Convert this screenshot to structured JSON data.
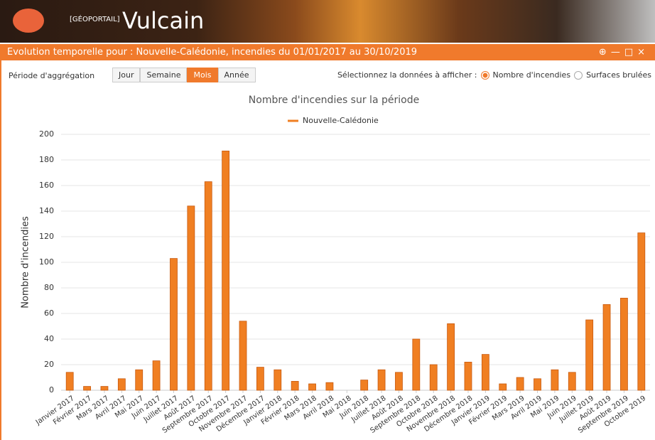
{
  "header": {
    "brand": "[GÉOPORTAIL]",
    "app": "Vulcain"
  },
  "window": {
    "title": "Evolution temporelle pour : Nouvelle-Calédonie, incendies du 01/01/2017 au 30/10/2019"
  },
  "controls": {
    "period_label": "Période d'aggrégation",
    "periods": [
      "Jour",
      "Semaine",
      "Mois",
      "Année"
    ],
    "selected_period": 2,
    "data_label": "Sélectionnez la données à afficher :",
    "options": [
      "Nombre d'incendies",
      "Surfaces brulées"
    ],
    "selected_option": 0
  },
  "chart_data": {
    "type": "bar",
    "title": "Nombre d'incendies sur la période",
    "y_label": "Nombre d'incendies",
    "categories": [
      "Janvier 2017",
      "Février 2017",
      "Mars 2017",
      "Avril 2017",
      "Mai 2017",
      "Juin 2017",
      "Juillet 2017",
      "Août 2017",
      "Septembre 2017",
      "Octobre 2017",
      "Novembre 2017",
      "Décembre 2017",
      "Janvier 2018",
      "Février 2018",
      "Mars 2018",
      "Avril 2018",
      "Mai 2018",
      "Juin 2018",
      "Juillet 2018",
      "Août 2018",
      "Septembre 2018",
      "Octobre 2018",
      "Novembre 2018",
      "Décembre 2018",
      "Janvier 2019",
      "Février 2019",
      "Mars 2019",
      "Avril 2019",
      "Mai 2019",
      "Juin 2019",
      "Juillet 2019",
      "Août 2019",
      "Septembre 2019",
      "Octobre 2019"
    ],
    "series": [
      {
        "name": "Nouvelle-Calédonie",
        "color": "#f07f22",
        "values": [
          14,
          3,
          3,
          9,
          16,
          23,
          103,
          144,
          163,
          187,
          54,
          18,
          16,
          7,
          5,
          6,
          0,
          8,
          16,
          14,
          40,
          20,
          52,
          22,
          28,
          5,
          10,
          9,
          16,
          14,
          55,
          67,
          72,
          123
        ]
      }
    ],
    "ylim": [
      0,
      200
    ],
    "yticks": [
      0,
      20,
      40,
      60,
      80,
      100,
      120,
      140,
      160,
      180,
      200
    ],
    "grid": true
  }
}
